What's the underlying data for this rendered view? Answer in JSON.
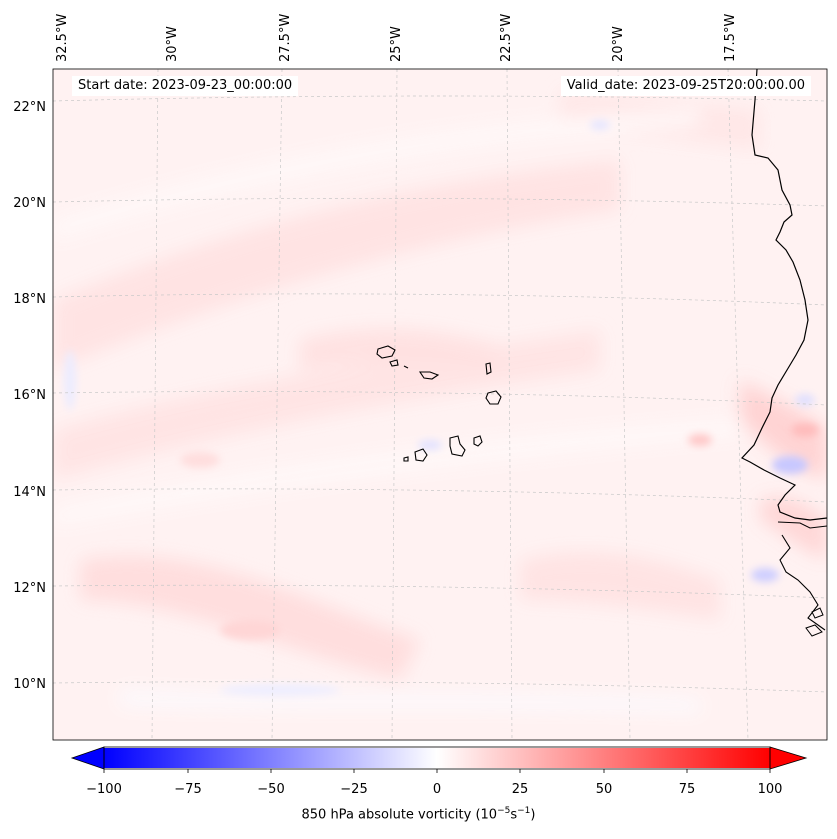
{
  "header": {
    "start_date": "Start date: 2023-09-23_00:00:00",
    "valid_date": "Valid_date: 2023-09-25T20:00:00.00"
  },
  "map": {
    "longitude_labels": [
      "32.5°W",
      "30°W",
      "27.5°W",
      "25°W",
      "22.5°W",
      "20°W",
      "17.5°W"
    ],
    "latitude_labels": [
      "22°N",
      "20°N",
      "18°N",
      "16°N",
      "14°N",
      "12°N",
      "10°N"
    ],
    "gridlines": true,
    "field": "850 hPa absolute vorticity, weak mostly positive values over the ocean, stronger mixed anomalies along the African coast"
  },
  "colorbar": {
    "ticks": [
      "−100",
      "−75",
      "−50",
      "−25",
      "0",
      "25",
      "50",
      "75",
      "100"
    ],
    "min": -100,
    "max": 100,
    "label_prefix": "850 hPa absolute vorticity (10",
    "label_exp1": "−5",
    "label_mid": "s",
    "label_exp2": "−1",
    "label_suffix": ")",
    "colors": {
      "low": "#0000ff",
      "mid": "#ffffff",
      "high": "#ff0000"
    }
  }
}
